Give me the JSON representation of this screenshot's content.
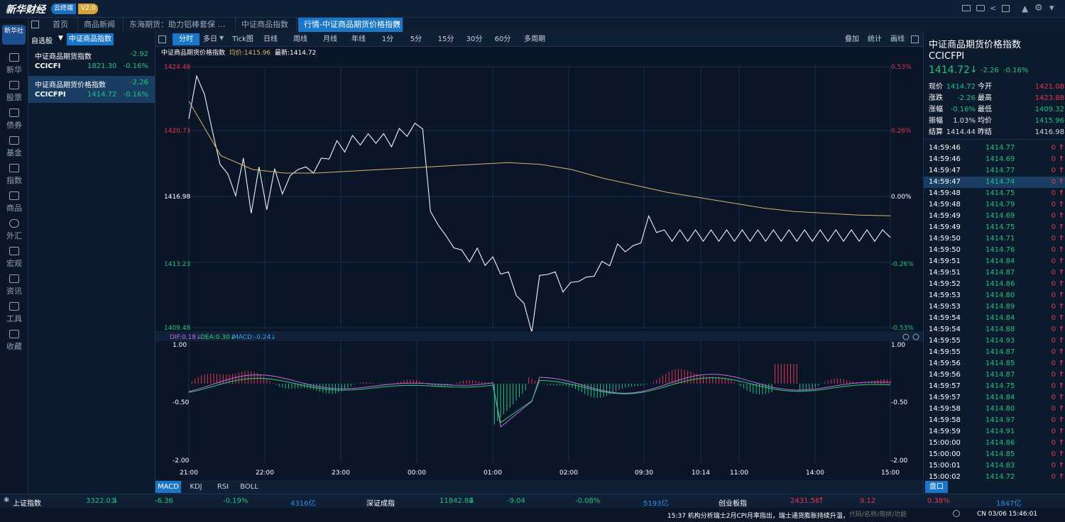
{
  "app": {
    "logo": "新华财经",
    "badge": "云终端",
    "version": "V2.0"
  },
  "tabs": [
    {
      "label": "首页"
    },
    {
      "label": "商品新闻"
    },
    {
      "label": "东海期货：助力铝棒套保 …"
    },
    {
      "label": "中证商品指数"
    },
    {
      "label": "行情-中证商品期货价格指数"
    }
  ],
  "tab_close": "✕",
  "nav": [
    {
      "label": "新华"
    },
    {
      "label": "股票"
    },
    {
      "label": "债券"
    },
    {
      "label": "基金"
    },
    {
      "label": "指数"
    },
    {
      "label": "商品"
    },
    {
      "label": "外汇"
    },
    {
      "label": "宏观"
    },
    {
      "label": "资讯"
    },
    {
      "label": "工具"
    },
    {
      "label": "收藏"
    }
  ],
  "nav_logo": "新华社",
  "watchlist": {
    "tabs": [
      "自选股",
      "中证商品指数"
    ],
    "items": [
      {
        "name": "中证商品期货指数",
        "change": "-2.92",
        "code": "CCICFI",
        "price": "1821.30",
        "pct": "-0.16%"
      },
      {
        "name": "中证商品期货价格指数",
        "change": "-2.26",
        "code": "CCICFPI",
        "price": "1414.72",
        "pct": "-0.16%"
      }
    ]
  },
  "toolbar": {
    "periods": [
      "分时",
      "多日",
      "Tick图",
      "日线",
      "周线",
      "月线",
      "年线",
      "1分",
      "5分",
      "15分",
      "30分",
      "60分",
      "多周期"
    ],
    "tools": [
      "叠加",
      "统计",
      "画线"
    ]
  },
  "chart_header": {
    "name": "中证商品期货价格指数",
    "avg": "均价:1415.96",
    "last": "最新:1414.72"
  },
  "chart_data": [
    {
      "type": "line",
      "title": "中证商品期货价格指数",
      "x_ticks": [
        "21:00",
        "22:00",
        "23:00",
        "00:00",
        "01:00",
        "02:00",
        "09:30",
        "10:14",
        "11:00",
        "14:00",
        "15:00"
      ],
      "y_ticks_left": [
        "1424.48",
        "1420.73",
        "1416.98",
        "1413.23",
        "1409.48"
      ],
      "y_ticks_right": [
        "0.53%",
        "0.26%",
        "0.00%",
        "-0.26%",
        "-0.53%"
      ],
      "ylim": [
        1409.48,
        1424.48
      ],
      "series": [
        {
          "name": "最新",
          "x": [
            0,
            3,
            6,
            9,
            12,
            15,
            18,
            21,
            24,
            27,
            30,
            33,
            36,
            39,
            42,
            45,
            48,
            51,
            54,
            57,
            60,
            63,
            66,
            69,
            72,
            75,
            78,
            81,
            84,
            87,
            90,
            93,
            96,
            99,
            102,
            105,
            108,
            111,
            114,
            117,
            120,
            123,
            126,
            129,
            132,
            135,
            138,
            141,
            144,
            147,
            150,
            153,
            156,
            159,
            162,
            165,
            168,
            171,
            174,
            177,
            180,
            183,
            186,
            189,
            192,
            195,
            198,
            201,
            204,
            207,
            210,
            213,
            216,
            219,
            222,
            225,
            228,
            231,
            234,
            237,
            240,
            243,
            246,
            249,
            252,
            255,
            258,
            261,
            264,
            267,
            270
          ],
          "values": [
            1421.5,
            1423.6,
            1423.2,
            1420.5,
            1419.2,
            1418.0,
            1417.4,
            1418.9,
            1416.4,
            1418.4,
            1416.6,
            1418.3,
            1417.5,
            1417.9,
            1418.9,
            1418.4,
            1418.7,
            1418.9,
            1419.5,
            1419.9,
            1419.9,
            1420.2,
            1420.3,
            1420.3,
            1420.4,
            1420.3,
            1420.2,
            1420.6,
            1420.8,
            1420.9,
            1421.1,
            1416.0,
            1415.6,
            1414.6,
            1414.3,
            1413.8,
            1413.5,
            1413.9,
            1413.3,
            1413.4,
            1412.8,
            1412.4,
            1411.7,
            1410.6,
            1409.6,
            1412.2,
            1412.9,
            1412.4,
            1411.9,
            1411.8,
            1412.5,
            1412.1,
            1412.8,
            1413.0,
            1413.4,
            1414.0,
            1414.2,
            1413.9,
            1414.7,
            1415.6,
            1415.3,
            1414.8,
            1414.8,
            1414.8,
            1414.8,
            1414.8,
            1414.8,
            1414.8,
            1414.8,
            1414.8,
            1414.8,
            1414.8,
            1414.8,
            1414.8,
            1414.8,
            1414.8,
            1414.8,
            1414.8,
            1414.8,
            1414.8,
            1414.8,
            1414.8,
            1414.8,
            1414.8,
            1414.8,
            1414.8,
            1414.8,
            1414.8,
            1414.8,
            1414.8,
            1414.72
          ]
        },
        {
          "name": "均价",
          "values": [
            1422.5,
            1419.4,
            1418.6,
            1418.4,
            1418.4,
            1418.5,
            1418.6,
            1418.7,
            1418.8,
            1418.9,
            1419.0,
            1418.9,
            1418.6,
            1418.1,
            1417.7,
            1417.3,
            1417.0,
            1416.7,
            1416.4,
            1416.2,
            1416.1,
            1416.0,
            1415.96
          ]
        }
      ]
    },
    {
      "type": "bar",
      "title": "MACD",
      "labels": {
        "dif": "DIF:0.18↓",
        "dea": "DEA:0.30↓",
        "macd": "MACD:-0.24↓"
      },
      "y_ticks": [
        "1.00",
        "-0.50",
        "-2.00"
      ],
      "ylim": [
        -2.0,
        1.0
      ]
    }
  ],
  "indicator_tabs": [
    "MACD",
    "KDJ",
    "RSI",
    "BOLL"
  ],
  "quote": {
    "title": "中证商品期货价格指数",
    "code": "CCICFPI",
    "price": "1414.72",
    "change": "-2.26",
    "pct": "-0.16%",
    "rows": [
      [
        "现价",
        "1414.72",
        "今开",
        "1421.08"
      ],
      [
        "涨跌",
        "-2.26",
        "最高",
        "1423.88"
      ],
      [
        "涨幅",
        "-0.16%",
        "最低",
        "1409.32"
      ],
      [
        "振幅",
        "1.03%",
        "均价",
        "1415.96"
      ],
      [
        "结算",
        "1414.44",
        "昨结",
        "1416.98"
      ]
    ],
    "ticks": [
      [
        "14:59:46",
        "1414.77",
        "0"
      ],
      [
        "14:59:46",
        "1414.69",
        "0"
      ],
      [
        "14:59:47",
        "1414.77",
        "0"
      ],
      [
        "14:59:47",
        "1414.74",
        "0"
      ],
      [
        "14:59:48",
        "1414.75",
        "0"
      ],
      [
        "14:59:48",
        "1414.79",
        "0"
      ],
      [
        "14:59:49",
        "1414.69",
        "0"
      ],
      [
        "14:59:49",
        "1414.75",
        "0"
      ],
      [
        "14:59:50",
        "1414.71",
        "0"
      ],
      [
        "14:59:50",
        "1414.76",
        "0"
      ],
      [
        "14:59:51",
        "1414.84",
        "0"
      ],
      [
        "14:59:51",
        "1414.87",
        "0"
      ],
      [
        "14:59:52",
        "1414.86",
        "0"
      ],
      [
        "14:59:53",
        "1414.80",
        "0"
      ],
      [
        "14:59:53",
        "1414.89",
        "0"
      ],
      [
        "14:59:54",
        "1414.84",
        "0"
      ],
      [
        "14:59:54",
        "1414.88",
        "0"
      ],
      [
        "14:59:55",
        "1414.93",
        "0"
      ],
      [
        "14:59:55",
        "1414.87",
        "0"
      ],
      [
        "14:59:56",
        "1414.85",
        "0"
      ],
      [
        "14:59:56",
        "1414.87",
        "0"
      ],
      [
        "14:59:57",
        "1414.75",
        "0"
      ],
      [
        "14:59:57",
        "1414.84",
        "0"
      ],
      [
        "14:59:58",
        "1414.80",
        "0"
      ],
      [
        "14:59:58",
        "1414.97",
        "0"
      ],
      [
        "14:59:59",
        "1414.91",
        "0"
      ],
      [
        "15:00:00",
        "1414.86",
        "0"
      ],
      [
        "15:00:00",
        "1414.85",
        "0"
      ],
      [
        "15:00:01",
        "1414.83",
        "0"
      ],
      [
        "15:00:02",
        "1414.72",
        "0"
      ]
    ],
    "panel_tab": "盘口"
  },
  "ticker": [
    {
      "name": "上证指数",
      "price": "3322.03",
      "chg": "-6.36",
      "pct": "-0.19%",
      "vol": "4316亿"
    },
    {
      "name": "深证成指",
      "price": "11842.88",
      "chg": "-9.04",
      "pct": "-0.08%",
      "vol": "5193亿"
    },
    {
      "name": "创业板指",
      "price": "2431.56",
      "chg": "9.12",
      "pct": "0.38%",
      "vol": "1847亿"
    }
  ],
  "status": {
    "news": "15:37  机构分析瑞士2月CPI月率指出，瑞士通货膨胀持续升温，核心年度通",
    "search_placeholder": "代码/名称/简拼/功能",
    "clock": "CN 03/06 15:46:01"
  },
  "colors": {
    "up": "#e8344b",
    "down": "#1ec47e",
    "accent": "#1976c8",
    "avg_line": "#d8b56a"
  }
}
